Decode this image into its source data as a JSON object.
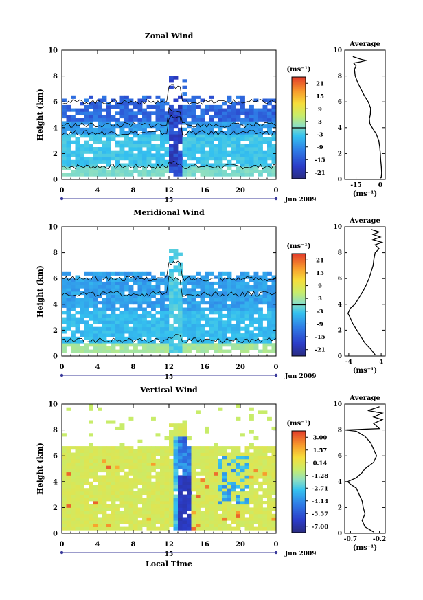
{
  "chart_data": [
    {
      "type": "heatmap",
      "title": "Zonal Wind",
      "ylabel": "Height (km)",
      "xlabel": "",
      "x_ticks": [
        "0",
        "4",
        "8",
        "12",
        "16",
        "20",
        "0"
      ],
      "y_ticks": [
        "0",
        "2",
        "4",
        "6",
        "8",
        "10"
      ],
      "xlim": [
        0,
        24
      ],
      "ylim": [
        0,
        10
      ],
      "day_label": "15",
      "date_label": "Jun 2009",
      "colorbar": {
        "unit": "(ms⁻¹)",
        "ticks": [
          "21",
          "15",
          "9",
          "3",
          "-3",
          "-9",
          "-15",
          "-21"
        ],
        "zero_line": 0,
        "range": [
          -24,
          24
        ]
      },
      "average": {
        "title": "Average",
        "xlabel": "(ms⁻¹)",
        "x_ticks": [
          "-15",
          "0"
        ],
        "xlim": [
          -22,
          3
        ],
        "profile": [
          [
            0.1,
            0.5
          ],
          [
            0.5,
            0.8
          ],
          [
            1.0,
            0.6
          ],
          [
            1.5,
            0.2
          ],
          [
            2.0,
            0.0
          ],
          [
            2.5,
            -0.4
          ],
          [
            3.0,
            -1.0
          ],
          [
            3.5,
            -2.5
          ],
          [
            4.0,
            -5.0
          ],
          [
            4.3,
            -6.5
          ],
          [
            4.7,
            -6.8
          ],
          [
            5.0,
            -6.2
          ],
          [
            5.5,
            -6.0
          ],
          [
            6.0,
            -7.5
          ],
          [
            6.5,
            -10.0
          ],
          [
            7.0,
            -12.0
          ],
          [
            7.5,
            -14.0
          ],
          [
            8.0,
            -15.5
          ],
          [
            8.5,
            -16.0
          ],
          [
            8.8,
            -15.0
          ],
          [
            9.0,
            -16.5
          ],
          [
            9.1,
            -12.0
          ],
          [
            9.2,
            -9.0
          ],
          [
            9.3,
            -12.0
          ],
          [
            9.5,
            -17.0
          ]
        ]
      }
    },
    {
      "type": "heatmap",
      "title": "Meridional Wind",
      "ylabel": "Height (km)",
      "xlabel": "",
      "x_ticks": [
        "0",
        "4",
        "8",
        "12",
        "16",
        "20",
        "0"
      ],
      "y_ticks": [
        "0",
        "2",
        "4",
        "6",
        "8",
        "10"
      ],
      "xlim": [
        0,
        24
      ],
      "ylim": [
        0,
        10
      ],
      "day_label": "15",
      "date_label": "Jun 2009",
      "colorbar": {
        "unit": "(ms⁻¹)",
        "ticks": [
          "21",
          "15",
          "9",
          "3",
          "-3",
          "-9",
          "-15",
          "-21"
        ],
        "zero_line": 0,
        "range": [
          -24,
          24
        ]
      },
      "average": {
        "title": "Average",
        "xlabel": "(ms⁻¹)",
        "x_ticks": [
          "-4",
          "4"
        ],
        "xlim": [
          -5,
          5
        ],
        "profile": [
          [
            0.1,
            2.5
          ],
          [
            0.5,
            1.5
          ],
          [
            1.0,
            0.0
          ],
          [
            1.5,
            -1.0
          ],
          [
            2.0,
            -2.0
          ],
          [
            2.5,
            -3.0
          ],
          [
            3.0,
            -3.7
          ],
          [
            3.3,
            -4.2
          ],
          [
            3.7,
            -3.6
          ],
          [
            4.0,
            -2.5
          ],
          [
            4.5,
            -1.5
          ],
          [
            5.0,
            -0.5
          ],
          [
            5.5,
            0.3
          ],
          [
            6.0,
            1.0
          ],
          [
            6.5,
            1.5
          ],
          [
            7.0,
            2.0
          ],
          [
            7.5,
            2.2
          ],
          [
            8.0,
            2.5
          ],
          [
            8.3,
            3.5
          ],
          [
            8.6,
            2.5
          ],
          [
            8.8,
            4.2
          ],
          [
            9.0,
            2.0
          ],
          [
            9.2,
            3.8
          ],
          [
            9.4,
            2.0
          ],
          [
            9.6,
            3.5
          ],
          [
            9.8,
            1.5
          ]
        ]
      }
    },
    {
      "type": "heatmap",
      "title": "Vertical Wind",
      "ylabel": "Height (km)",
      "xlabel": "Local Time",
      "x_ticks": [
        "0",
        "4",
        "8",
        "12",
        "16",
        "20",
        "0"
      ],
      "y_ticks": [
        "0",
        "2",
        "4",
        "6",
        "8",
        "10"
      ],
      "xlim": [
        0,
        24
      ],
      "ylim": [
        0,
        10
      ],
      "day_label": "15",
      "date_label": "Jun 2009",
      "colorbar": {
        "unit": "(ms⁻¹)",
        "ticks": [
          "3.00",
          "1.57",
          "0.14",
          "-1.28",
          "-2.71",
          "-4.14",
          "-5.57",
          "-7.00"
        ],
        "zero_line": null,
        "range": [
          -7.5,
          3.5
        ]
      },
      "average": {
        "title": "Average",
        "xlabel": "(ms⁻¹)",
        "x_ticks": [
          "-0.7",
          "-0.2"
        ],
        "xlim": [
          -0.8,
          -0.1
        ],
        "profile": [
          [
            0.1,
            -0.3
          ],
          [
            0.5,
            -0.45
          ],
          [
            1.0,
            -0.5
          ],
          [
            1.5,
            -0.45
          ],
          [
            2.0,
            -0.48
          ],
          [
            2.5,
            -0.5
          ],
          [
            3.0,
            -0.55
          ],
          [
            3.5,
            -0.6
          ],
          [
            3.8,
            -0.7
          ],
          [
            4.0,
            -0.75
          ],
          [
            4.3,
            -0.6
          ],
          [
            4.7,
            -0.5
          ],
          [
            5.0,
            -0.45
          ],
          [
            5.5,
            -0.3
          ],
          [
            6.0,
            -0.25
          ],
          [
            6.5,
            -0.3
          ],
          [
            7.0,
            -0.35
          ],
          [
            7.5,
            -0.45
          ],
          [
            7.9,
            -0.6
          ],
          [
            8.0,
            -0.8
          ],
          [
            8.1,
            -0.2
          ],
          [
            8.5,
            -0.3
          ],
          [
            8.8,
            -0.15
          ],
          [
            9.0,
            -0.3
          ],
          [
            9.3,
            -0.15
          ],
          [
            9.5,
            -0.4
          ],
          [
            9.8,
            -0.2
          ]
        ]
      }
    }
  ]
}
